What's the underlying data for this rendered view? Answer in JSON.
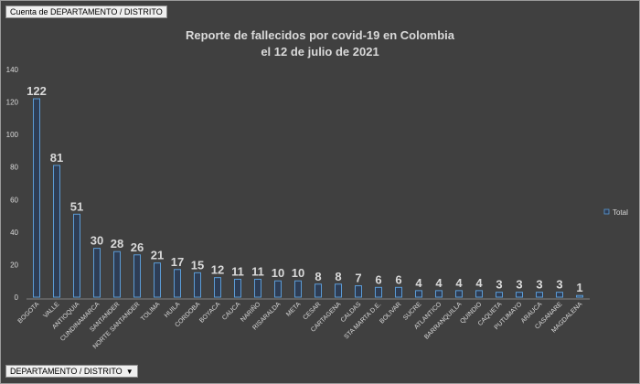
{
  "value_field_button": "Cuenta de DEPARTAMENTO / DISTRITO",
  "axis_field_button": "DEPARTAMENTO / DISTRITO",
  "dropdown_icon": "chevron-down-icon",
  "chart_data": {
    "type": "bar",
    "title": "Reporte de fallecidos por covid-19 en Colombia",
    "subtitle": "el 12 de julio de 2021",
    "xlabel": "",
    "ylabel": "",
    "ylim": [
      0,
      140
    ],
    "yticks": [
      "0",
      "20",
      "40",
      "60",
      "80",
      "100",
      "120",
      "140"
    ],
    "grid": false,
    "legend_position": "right",
    "colors": {
      "background": "#404040",
      "bar_fill": "#2e3d55",
      "bar_edge": "#5b9bd5",
      "text": "#d9d9d9"
    },
    "categories": [
      "BOGOTA",
      "VALLE",
      "ANTIOQUIA",
      "CUNDINAMARCA",
      "SANTANDER",
      "NORTE SANTANDER",
      "TOLIMA",
      "HUILA",
      "CORDOBA",
      "BOYACA",
      "CAUCA",
      "NARIÑO",
      "RISARALDA",
      "META",
      "CESAR",
      "CARTAGENA",
      "CALDAS",
      "STA MARTA D.E.",
      "BOLIVAR",
      "SUCRE",
      "ATLANTICO",
      "BARRANQUILLA",
      "QUINDIO",
      "CAQUETA",
      "PUTUMAYO",
      "ARAUCA",
      "CASANARE",
      "MAGDALENA"
    ],
    "series": [
      {
        "name": "Total",
        "values": [
          122,
          81,
          51,
          30,
          28,
          26,
          21,
          17,
          15,
          12,
          11,
          11,
          10,
          10,
          8,
          8,
          7,
          6,
          6,
          4,
          4,
          4,
          4,
          3,
          3,
          3,
          3,
          1
        ]
      }
    ]
  }
}
